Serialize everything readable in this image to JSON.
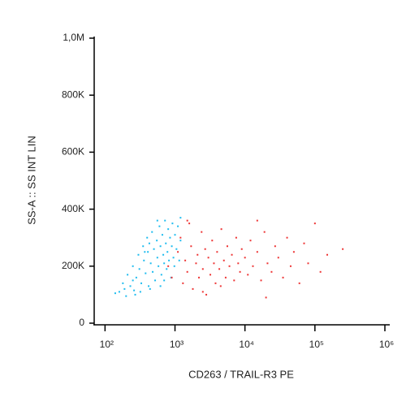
{
  "chart_data": {
    "type": "scatter",
    "x_label": "CD263 / TRAIL-R3 PE",
    "y_label": "SS-A :: SS INT LIN",
    "xscale": "log",
    "xlim": [
      70,
      1000000
    ],
    "ylim": [
      0,
      1000000
    ],
    "xticks": [
      {
        "value": 100,
        "label": "10²"
      },
      {
        "value": 1000,
        "label": "10³"
      },
      {
        "value": 10000,
        "label": "10⁴"
      },
      {
        "value": 100000,
        "label": "10⁵"
      },
      {
        "value": 1000000,
        "label": "10⁶"
      }
    ],
    "yticks": [
      0,
      {
        "value": 200000,
        "label": "200K"
      },
      {
        "value": 400000,
        "label": "400K"
      },
      {
        "value": 600000,
        "label": "600K"
      },
      {
        "value": 800000,
        "label": "800K"
      },
      {
        "value": 1000000,
        "label": "1,0M"
      }
    ],
    "series": [
      {
        "color": "#1fbcef",
        "x": [
          160,
          180,
          200,
          210,
          230,
          250,
          260,
          280,
          300,
          310,
          330,
          350,
          360,
          380,
          400,
          410,
          420,
          450,
          470,
          480,
          500,
          520,
          550,
          560,
          580,
          600,
          620,
          640,
          660,
          680,
          700,
          720,
          740,
          760,
          780,
          800,
          820,
          850,
          880,
          900,
          920,
          950,
          980,
          1000,
          1050,
          1100,
          1150,
          1200,
          270,
          190,
          140,
          320,
          440,
          620,
          560,
          430,
          370,
          250,
          700,
          1200
        ],
        "values": [
          110000,
          140000,
          95000,
          170000,
          130000,
          200000,
          115000,
          160000,
          240000,
          190000,
          140000,
          270000,
          220000,
          175000,
          300000,
          250000,
          130000,
          210000,
          320000,
          180000,
          260000,
          150000,
          290000,
          230000,
          200000,
          340000,
          270000,
          170000,
          310000,
          240000,
          210000,
          360000,
          280000,
          190000,
          250000,
          330000,
          220000,
          300000,
          160000,
          270000,
          350000,
          230000,
          200000,
          310000,
          260000,
          340000,
          220000,
          290000,
          100000,
          120000,
          105000,
          110000,
          120000,
          130000,
          360000,
          280000,
          250000,
          150000,
          150000,
          370000
        ]
      },
      {
        "color": "#ee3535",
        "x": [
          800,
          900,
          1100,
          1200,
          1300,
          1400,
          1500,
          1600,
          1700,
          1800,
          2000,
          2100,
          2200,
          2400,
          2500,
          2700,
          2800,
          3000,
          3200,
          3400,
          3600,
          3800,
          4000,
          4300,
          4600,
          5000,
          5300,
          5600,
          6000,
          6500,
          7000,
          7500,
          8000,
          8500,
          9000,
          10000,
          11000,
          12000,
          13000,
          15000,
          17000,
          19000,
          21000,
          24000,
          27000,
          30000,
          35000,
          40000,
          45000,
          50000,
          60000,
          70000,
          80000,
          100000,
          120000,
          150000,
          250000,
          2500,
          1500,
          4500,
          20000,
          15000
        ],
        "values": [
          200000,
          160000,
          250000,
          300000,
          140000,
          220000,
          180000,
          350000,
          270000,
          120000,
          210000,
          240000,
          160000,
          320000,
          190000,
          260000,
          100000,
          230000,
          170000,
          290000,
          210000,
          140000,
          250000,
          190000,
          330000,
          220000,
          160000,
          270000,
          200000,
          240000,
          150000,
          300000,
          210000,
          180000,
          260000,
          230000,
          170000,
          290000,
          200000,
          250000,
          150000,
          320000,
          210000,
          180000,
          270000,
          230000,
          160000,
          300000,
          200000,
          250000,
          140000,
          280000,
          210000,
          350000,
          180000,
          240000,
          260000,
          110000,
          360000,
          130000,
          90000,
          360000
        ]
      }
    ]
  }
}
